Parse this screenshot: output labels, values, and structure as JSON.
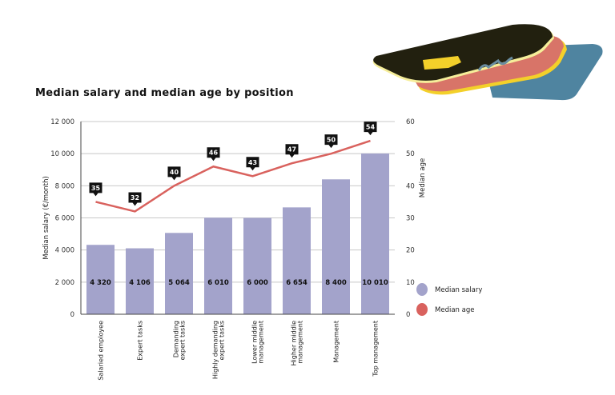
{
  "chart_data": {
    "type": "bar",
    "title": "Median salary and median age by position",
    "categories": [
      "Salaried employee",
      "Expert tasks",
      "Demanding expert tasks",
      "Highly demanding expert tasks",
      "Lower middle management",
      "Higher middle management",
      "Management",
      "Top management"
    ],
    "category_lines": [
      [
        "Salaried employee"
      ],
      [
        "Expert tasks"
      ],
      [
        "Demanding",
        "expert tasks"
      ],
      [
        "Highly demanding",
        "expert tasks"
      ],
      [
        "Lower middle",
        "management"
      ],
      [
        "Higher middle",
        "management"
      ],
      [
        "Management"
      ],
      [
        "Top management"
      ]
    ],
    "series": [
      {
        "name": "Median salary",
        "type": "bar",
        "axis": "left",
        "values": [
          4320,
          4106,
          5064,
          6010,
          6000,
          6654,
          8400,
          10010
        ],
        "labels": [
          "4 320",
          "4 106",
          "5 064",
          "6 010",
          "6 000",
          "6 654",
          "8 400",
          "10 010"
        ],
        "color": "#a3a3cb"
      },
      {
        "name": "Median age",
        "type": "line",
        "axis": "right",
        "values": [
          35,
          32,
          40,
          46,
          43,
          47,
          50,
          54
        ],
        "color": "#d9625e"
      }
    ],
    "ylabel": "Median salary (€/month)",
    "ylabel_right": "Median age",
    "ylim": [
      0,
      12000
    ],
    "ylim_right": [
      0,
      60
    ],
    "yticks": [
      "0",
      "2 000",
      "4 000",
      "6 000",
      "8 000",
      "10 000",
      "12 000"
    ],
    "yticks_values": [
      0,
      2000,
      4000,
      6000,
      8000,
      10000,
      12000
    ],
    "yticks_right": [
      0,
      10,
      20,
      30,
      40,
      50,
      60
    ],
    "grid": true,
    "legend_placement": "bottom-right"
  },
  "decoration": {
    "icon": "credit-cards-illustration",
    "colors": [
      "#22200f",
      "#d87468",
      "#4f84a0",
      "#f3d02a"
    ]
  }
}
